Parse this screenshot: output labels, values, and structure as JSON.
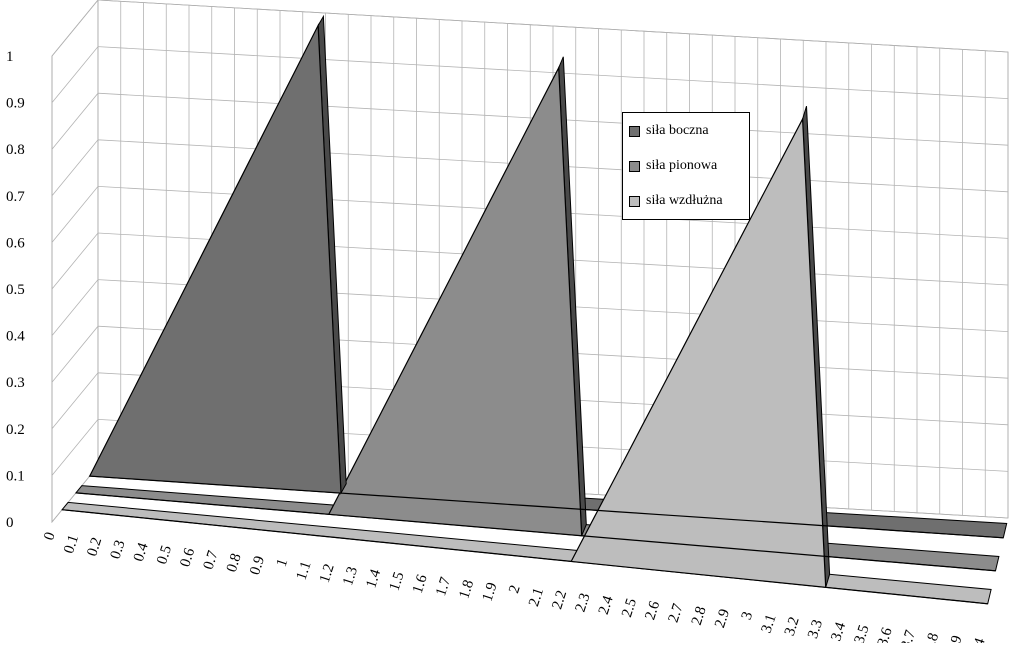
{
  "chart_data": {
    "type": "area",
    "style": "3d",
    "x": [
      "0",
      "0.1",
      "0.2",
      "0.3",
      "0.4",
      "0.5",
      "0.6",
      "0.7",
      "0.8",
      "0.9",
      "1",
      "1.1",
      "1.2",
      "1.3",
      "1.4",
      "1.5",
      "1.6",
      "1.7",
      "1.8",
      "1.9",
      "2",
      "2.1",
      "2.2",
      "2.3",
      "2.4",
      "2.5",
      "2.6",
      "2.7",
      "2.8",
      "2.9",
      "3",
      "3.1",
      "3.2",
      "3.3",
      "3.4",
      "3.5",
      "3.6",
      "3.7",
      "3.8",
      "3.9",
      "4"
    ],
    "y_ticks": [
      "0",
      "0.1",
      "0.2",
      "0.3",
      "0.4",
      "0.5",
      "0.6",
      "0.7",
      "0.8",
      "0.9",
      "1"
    ],
    "ylim": [
      0,
      1
    ],
    "grid": true,
    "legend_position": "top-right",
    "series": [
      {
        "name": "siła boczna",
        "color": "#6f6f6f",
        "values": [
          0,
          0.1,
          0.2,
          0.3,
          0.4,
          0.5,
          0.6,
          0.7,
          0.8,
          0.9,
          1,
          0,
          0,
          0,
          0,
          0,
          0,
          0,
          0,
          0,
          0,
          0,
          0,
          0,
          0,
          0,
          0,
          0,
          0,
          0,
          0,
          0,
          0,
          0,
          0,
          0,
          0,
          0,
          0,
          0,
          0
        ]
      },
      {
        "name": "siła pionowa",
        "color": "#8c8c8c",
        "values": [
          0,
          0,
          0,
          0,
          0,
          0,
          0,
          0,
          0,
          0,
          0,
          0,
          0.1,
          0.2,
          0.3,
          0.4,
          0.5,
          0.6,
          0.7,
          0.8,
          0.9,
          1,
          0,
          0,
          0,
          0,
          0,
          0,
          0,
          0,
          0,
          0,
          0,
          0,
          0,
          0,
          0,
          0,
          0,
          0,
          0
        ]
      },
      {
        "name": "siła wzdłużna",
        "color": "#bdbdbd",
        "values": [
          0,
          0,
          0,
          0,
          0,
          0,
          0,
          0,
          0,
          0,
          0,
          0,
          0,
          0,
          0,
          0,
          0,
          0,
          0,
          0,
          0,
          0,
          0,
          0.1,
          0.2,
          0.3,
          0.4,
          0.5,
          0.6,
          0.7,
          0.8,
          0.9,
          1,
          0,
          0,
          0,
          0,
          0,
          0,
          0,
          0
        ]
      }
    ]
  }
}
